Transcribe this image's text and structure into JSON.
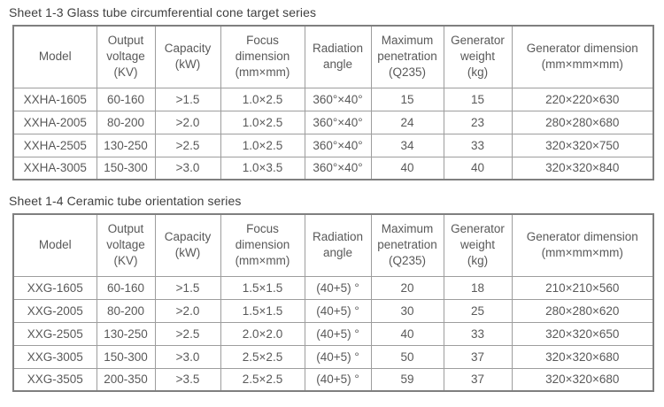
{
  "colors": {
    "background": "#ffffff",
    "title_text": "#3f3f3f",
    "cell_text": "#595959",
    "border_inner": "#9d9d9d",
    "border_outer": "#7f7f7f"
  },
  "tables": [
    {
      "title": "Sheet 1-3 Glass tube circumferential cone target series",
      "columns": [
        {
          "lines": [
            "Model"
          ]
        },
        {
          "lines": [
            "Output",
            "voltage",
            "(KV)"
          ]
        },
        {
          "lines": [
            "Capacity",
            "(kW)"
          ]
        },
        {
          "lines": [
            "Focus",
            "dimension",
            "(mm×mm)"
          ]
        },
        {
          "lines": [
            "Radiation",
            "angle"
          ]
        },
        {
          "lines": [
            "Maximum",
            "penetration",
            "(Q235)"
          ]
        },
        {
          "lines": [
            "Generator",
            "weight",
            "(kg)"
          ]
        },
        {
          "lines": [
            "Generator dimension",
            "(mm×mm×mm)"
          ]
        }
      ],
      "rows": [
        [
          "XXHA-1605",
          "60-160",
          ">1.5",
          "1.0×2.5",
          "360°×40°",
          "15",
          "15",
          "220×220×630"
        ],
        [
          "XXHA-2005",
          "80-200",
          ">2.0",
          "1.0×2.5",
          "360°×40°",
          "24",
          "23",
          "280×280×680"
        ],
        [
          "XXHA-2505",
          "130-250",
          ">2.5",
          "1.0×2.5",
          "360°×40°",
          "34",
          "33",
          "320×320×750"
        ],
        [
          "XXHA-3005",
          "150-300",
          ">3.0",
          "1.0×3.5",
          "360°×40°",
          "40",
          "40",
          "320×320×840"
        ]
      ]
    },
    {
      "title": "Sheet 1-4 Ceramic tube orientation series",
      "columns": [
        {
          "lines": [
            "Model"
          ]
        },
        {
          "lines": [
            "Output",
            "voltage",
            "(KV)"
          ]
        },
        {
          "lines": [
            "Capacity",
            "(kW)"
          ]
        },
        {
          "lines": [
            "Focus",
            "dimension",
            "(mm×mm)"
          ]
        },
        {
          "lines": [
            "Radiation",
            "angle"
          ]
        },
        {
          "lines": [
            "Maximum",
            "penetration",
            "(Q235)"
          ]
        },
        {
          "lines": [
            "Generator",
            "weight",
            "(kg)"
          ]
        },
        {
          "lines": [
            "Generator dimension",
            "(mm×mm×mm)"
          ]
        }
      ],
      "rows": [
        [
          "XXG-1605",
          "60-160",
          ">1.5",
          "1.5×1.5",
          "(40+5) °",
          "20",
          "18",
          "210×210×560"
        ],
        [
          "XXG-2005",
          "80-200",
          ">2.0",
          "1.5×1.5",
          "(40+5) °",
          "30",
          "25",
          "280×280×620"
        ],
        [
          "XXG-2505",
          "130-250",
          ">2.5",
          "2.0×2.0",
          "(40+5) °",
          "40",
          "33",
          "320×320×650"
        ],
        [
          "XXG-3005",
          "150-300",
          ">3.0",
          "2.5×2.5",
          "(40+5) °",
          "50",
          "37",
          "320×320×680"
        ],
        [
          "XXG-3505",
          "200-350",
          ">3.5",
          "2.5×2.5",
          "(40+5) °",
          "59",
          "37",
          "320×320×680"
        ]
      ]
    }
  ]
}
